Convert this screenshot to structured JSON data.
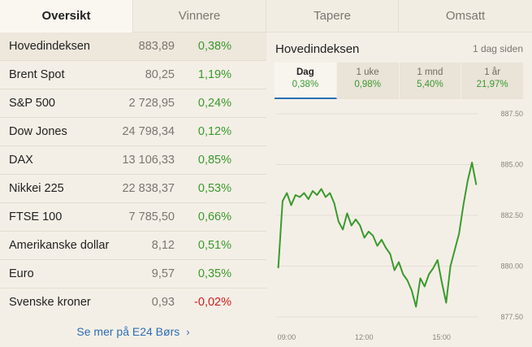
{
  "tabs": [
    {
      "label": "Oversikt",
      "active": true
    },
    {
      "label": "Vinnere",
      "active": false
    },
    {
      "label": "Tapere",
      "active": false
    },
    {
      "label": "Omsatt",
      "active": false
    }
  ],
  "rows": [
    {
      "name": "Hovedindeksen",
      "value": "883,89",
      "change": "0,38%",
      "dir": "pos"
    },
    {
      "name": "Brent Spot",
      "value": "80,25",
      "change": "1,19%",
      "dir": "pos"
    },
    {
      "name": "S&P 500",
      "value": "2 728,95",
      "change": "0,24%",
      "dir": "pos"
    },
    {
      "name": "Dow Jones",
      "value": "24 798,34",
      "change": "0,12%",
      "dir": "pos"
    },
    {
      "name": "DAX",
      "value": "13 106,33",
      "change": "0,85%",
      "dir": "pos"
    },
    {
      "name": "Nikkei 225",
      "value": "22 838,37",
      "change": "0,53%",
      "dir": "pos"
    },
    {
      "name": "FTSE 100",
      "value": "7 785,50",
      "change": "0,66%",
      "dir": "pos"
    },
    {
      "name": "Amerikanske dollar",
      "value": "8,12",
      "change": "0,51%",
      "dir": "pos"
    },
    {
      "name": "Euro",
      "value": "9,57",
      "change": "0,35%",
      "dir": "pos"
    },
    {
      "name": "Svenske kroner",
      "value": "0,93",
      "change": "-0,02%",
      "dir": "neg"
    }
  ],
  "more_link": "Se mer på E24 Børs",
  "panel": {
    "title": "Hovedindeksen",
    "updated": "1 dag siden",
    "periods": [
      {
        "label": "Dag",
        "value": "0,38%",
        "active": true
      },
      {
        "label": "1 uke",
        "value": "0,98%",
        "active": false
      },
      {
        "label": "1 mnd",
        "value": "5,40%",
        "active": false
      },
      {
        "label": "1 år",
        "value": "21,97%",
        "active": false
      }
    ]
  },
  "colors": {
    "positive": "#3a9a2e",
    "negative": "#cc1f1f",
    "link": "#2c6fb6",
    "line": "#3a9a2e"
  },
  "chart_data": {
    "type": "line",
    "ylim": [
      877.5,
      887.5
    ],
    "y_ticks": [
      "887.50",
      "885.00",
      "882.50",
      "880.00",
      "877.50"
    ],
    "x_ticks": [
      "09:00",
      "12:00",
      "15:00"
    ],
    "grid": true,
    "series": [
      {
        "x": [
          "09:00",
          "09:10",
          "09:20",
          "09:30",
          "09:40",
          "09:50",
          "10:00",
          "10:10",
          "10:20",
          "10:30",
          "10:40",
          "10:50",
          "11:00",
          "11:10",
          "11:20",
          "11:30",
          "11:40",
          "11:50",
          "12:00",
          "12:10",
          "12:20",
          "12:30",
          "12:40",
          "12:50",
          "13:00",
          "13:10",
          "13:20",
          "13:30",
          "13:40",
          "13:50",
          "14:00",
          "14:10",
          "14:20",
          "14:30",
          "14:40",
          "14:50",
          "15:00",
          "15:10",
          "15:20",
          "15:30",
          "15:40",
          "15:50",
          "16:00",
          "16:10",
          "16:20",
          "16:30",
          "16:40"
        ],
        "values": [
          879.9,
          883.2,
          883.6,
          883.0,
          883.5,
          883.4,
          883.6,
          883.3,
          883.7,
          883.5,
          883.8,
          883.4,
          883.6,
          883.1,
          882.2,
          881.8,
          882.6,
          882.0,
          882.3,
          882.0,
          881.4,
          881.7,
          881.5,
          881.0,
          881.3,
          880.9,
          880.6,
          879.8,
          880.2,
          879.6,
          879.3,
          878.8,
          878.0,
          879.4,
          879.0,
          879.6,
          879.9,
          880.3,
          879.2,
          878.2,
          880.0,
          880.8,
          881.6,
          883.0,
          884.2,
          885.1,
          884.0
        ]
      }
    ]
  }
}
